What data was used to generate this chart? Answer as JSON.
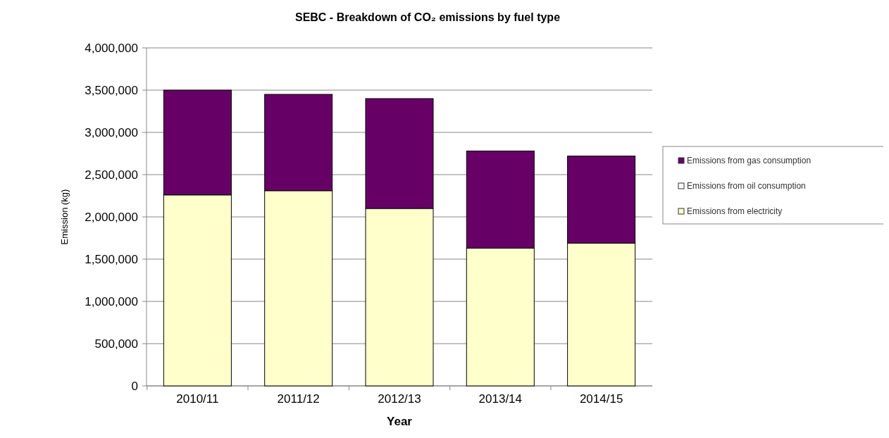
{
  "chart_data": {
    "type": "bar",
    "title": "SEBC - Breakdown of CO₂ emissions by fuel type",
    "xlabel": "Year",
    "ylabel": "Emission (kg)",
    "categories": [
      "2010/11",
      "2011/12",
      "2012/13",
      "2013/14",
      "2014/15"
    ],
    "series": [
      {
        "name": "Emissions from electricity",
        "color": "#ffffcc",
        "values": [
          2260000,
          2310000,
          2100000,
          1630000,
          1690000
        ]
      },
      {
        "name": "Emissions from oil consumption",
        "color": "#ffffff",
        "values": [
          0,
          0,
          0,
          0,
          0
        ]
      },
      {
        "name": "Emissions from gas consumption",
        "color": "#660066",
        "values": [
          1240000,
          1140000,
          1300000,
          1150000,
          1030000
        ]
      }
    ],
    "stacked": true,
    "ylim": [
      0,
      4000000
    ],
    "yticks": [
      {
        "value": 0,
        "label": "0"
      },
      {
        "value": 500000,
        "label": "500,000"
      },
      {
        "value": 1000000,
        "label": "1,000,000"
      },
      {
        "value": 1500000,
        "label": "1,500,000"
      },
      {
        "value": 2000000,
        "label": "2,000,000"
      },
      {
        "value": 2500000,
        "label": "2,500,000"
      },
      {
        "value": 3000000,
        "label": "3,000,000"
      },
      {
        "value": 3500000,
        "label": "3,500,000"
      },
      {
        "value": 4000000,
        "label": "4,000,000"
      }
    ],
    "grid": "y",
    "legend": "right"
  }
}
